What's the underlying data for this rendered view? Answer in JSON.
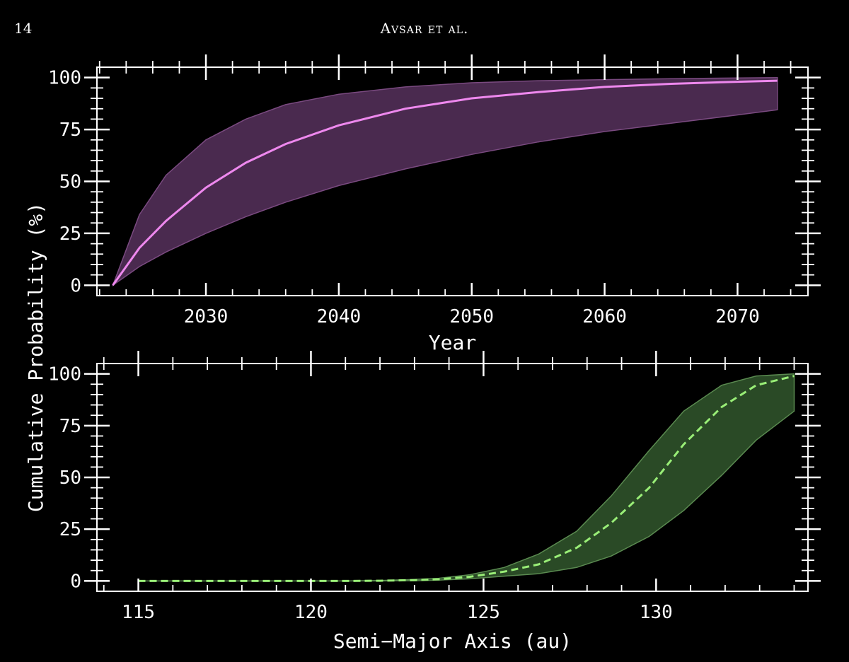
{
  "header": {
    "page_number": "14",
    "running_head": "Avsar et al."
  },
  "chart_data": [
    {
      "type": "area",
      "xlabel": "Year",
      "ylabel": "Cumulative Probability (%)",
      "xlim": [
        2021.8,
        2075.3
      ],
      "ylim": [
        -5,
        105
      ],
      "xticks": [
        2030,
        2040,
        2050,
        2060,
        2070
      ],
      "yticks": [
        0,
        25,
        50,
        75,
        100
      ],
      "colors": {
        "line": "#ee88ee",
        "band": "#4a2a4f",
        "band_edge": "#7a4a80"
      },
      "line_style": "solid",
      "x": [
        2023,
        2025,
        2027,
        2030,
        2033,
        2036,
        2040,
        2045,
        2050,
        2055,
        2060,
        2065,
        2070,
        2073
      ],
      "median": [
        0,
        18,
        31,
        47,
        59,
        68,
        77,
        85,
        90,
        93,
        95.5,
        97,
        98,
        98.5
      ],
      "upper": [
        0,
        34,
        53,
        70,
        80,
        87,
        92,
        95.5,
        97.5,
        98.5,
        99,
        99.5,
        99.8,
        100
      ],
      "lower": [
        0,
        9,
        16,
        25,
        33,
        40,
        48,
        56,
        63,
        69,
        74,
        78,
        82,
        84.5
      ]
    },
    {
      "type": "area",
      "xlabel": "Semi−Major Axis (au)",
      "ylabel": "Cumulative Probability (%)",
      "xlim": [
        113.8,
        134.4
      ],
      "ylim": [
        -5,
        105
      ],
      "xticks": [
        115,
        120,
        125,
        130
      ],
      "yticks": [
        0,
        25,
        50,
        75,
        100
      ],
      "colors": {
        "line": "#99ee77",
        "band": "#2a4a26",
        "band_edge": "#5a8a50"
      },
      "line_style": "dashed",
      "x": [
        115,
        116,
        117,
        118,
        119,
        120,
        121,
        122,
        123,
        123.7,
        124.6,
        125.6,
        126.6,
        127.7,
        128.7,
        129.8,
        130.8,
        131.9,
        132.9,
        134
      ],
      "median": [
        0,
        0,
        0,
        0,
        0,
        0,
        0,
        0.1,
        0.4,
        0.8,
        2,
        4.5,
        8,
        16,
        28,
        45,
        66,
        84,
        94.5,
        99
      ],
      "upper": [
        0,
        0,
        0,
        0,
        0,
        0,
        0,
        0.2,
        0.7,
        1.3,
        3,
        6.5,
        13,
        24,
        41,
        63,
        82,
        94.5,
        99,
        100
      ],
      "lower": [
        0,
        0,
        0,
        0,
        0,
        0,
        0,
        0,
        0.1,
        0.4,
        1,
        2.3,
        3.5,
        6.5,
        12,
        21.5,
        34,
        51,
        68,
        82
      ]
    }
  ]
}
